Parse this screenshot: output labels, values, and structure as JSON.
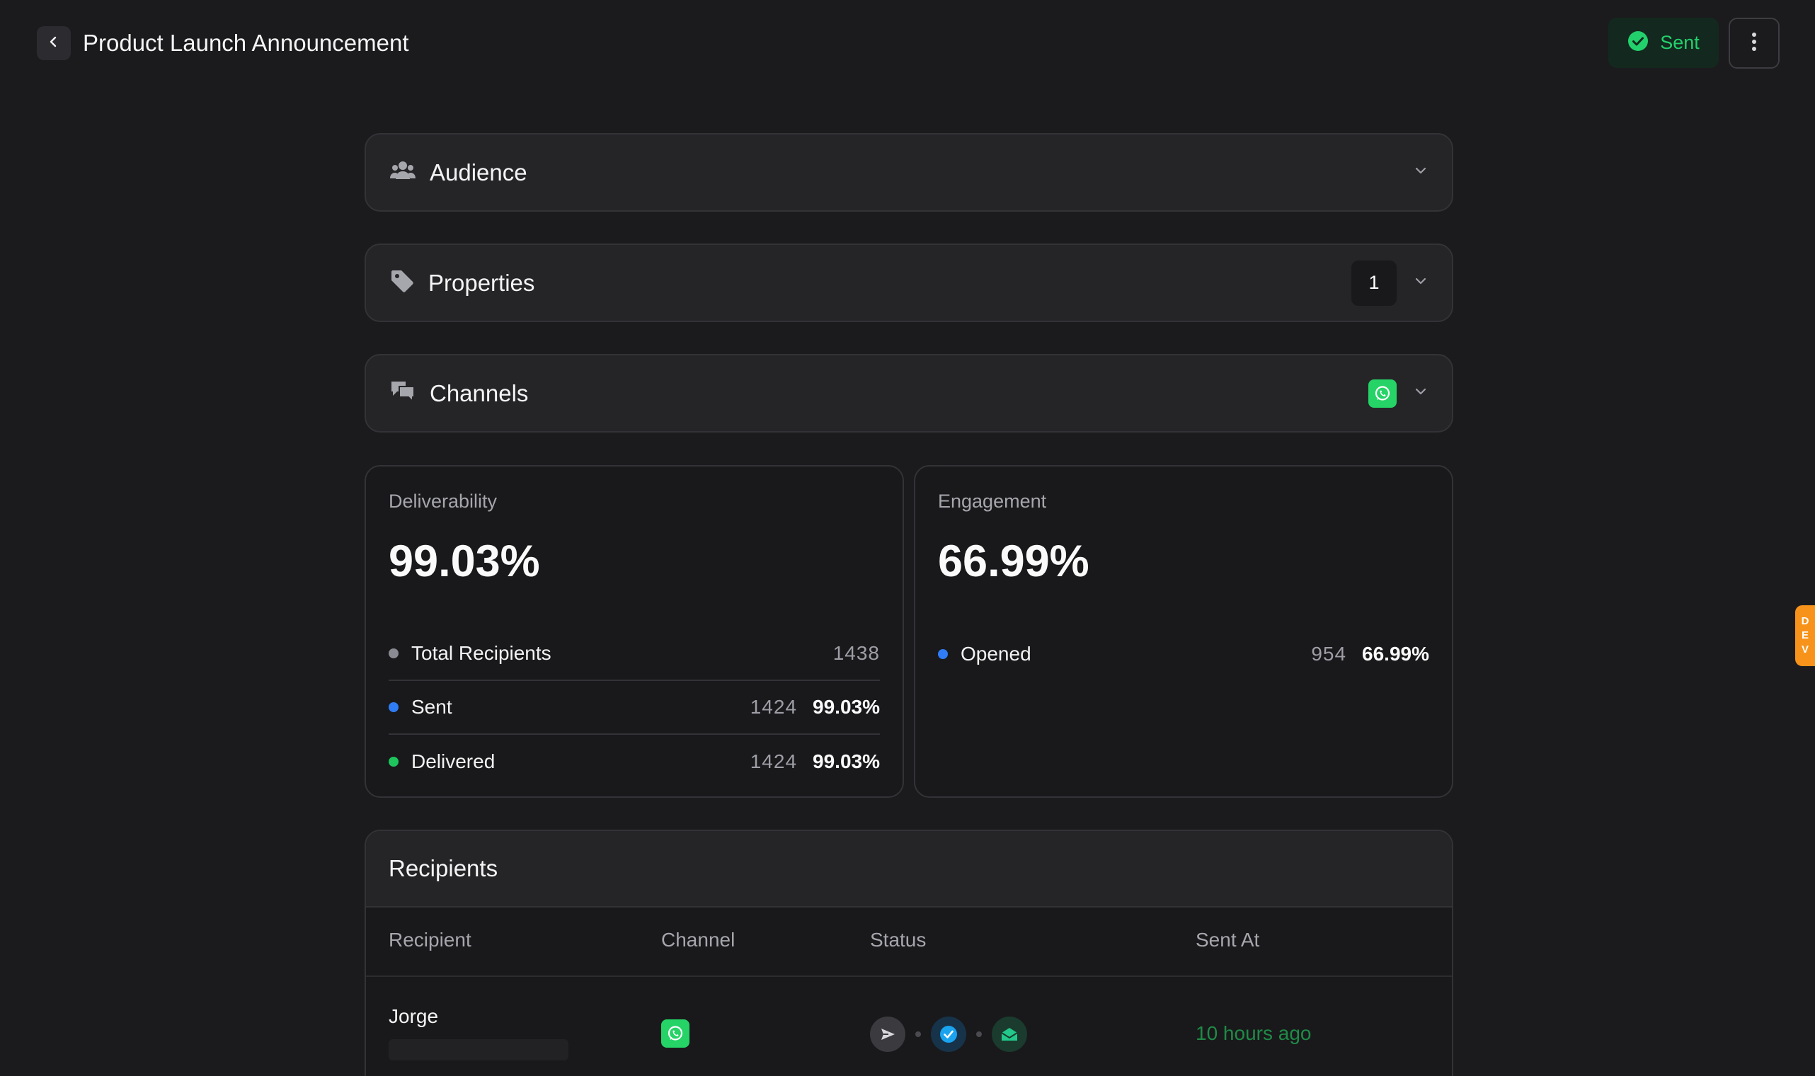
{
  "header": {
    "title": "Product Launch Announcement",
    "status_label": "Sent",
    "back_icon": "chevron-left-icon",
    "more_icon": "more-vertical-icon"
  },
  "sections": [
    {
      "label": "Audience",
      "icon": "users-icon"
    },
    {
      "label": "Properties",
      "icon": "tag-icon",
      "count": "1"
    },
    {
      "label": "Channels",
      "icon": "chat-bubbles-icon",
      "channel_icon": "whatsapp-icon"
    }
  ],
  "deliverability": {
    "title": "Deliverability",
    "value": "99.03%",
    "rows": [
      {
        "label": "Total Recipients",
        "count": "1438",
        "percent": ""
      },
      {
        "label": "Sent",
        "count": "1424",
        "percent": "99.03%"
      },
      {
        "label": "Delivered",
        "count": "1424",
        "percent": "99.03%"
      }
    ]
  },
  "engagement": {
    "title": "Engagement",
    "value": "66.99%",
    "rows": [
      {
        "label": "Opened",
        "count": "954",
        "percent": "66.99%"
      }
    ]
  },
  "recipients": {
    "title": "Recipients",
    "columns": [
      "Recipient",
      "Channel",
      "Status",
      "Sent At"
    ],
    "rows": [
      {
        "name": "Jorge",
        "channel": "whatsapp-icon",
        "statuses": [
          "sent-icon",
          "delivered-icon",
          "opened-icon"
        ],
        "sent_at": "10 hours ago"
      }
    ]
  },
  "dev_badge": [
    "D",
    "E",
    "V"
  ],
  "colors": {
    "background": "#1b1b1d",
    "accent_green": "#23d16c",
    "whatsapp": "#25d366",
    "dot_gray": "#8a8a92",
    "dot_blue": "#2f7cf6",
    "dot_green": "#1ec45c",
    "dev": "#f7931a"
  }
}
